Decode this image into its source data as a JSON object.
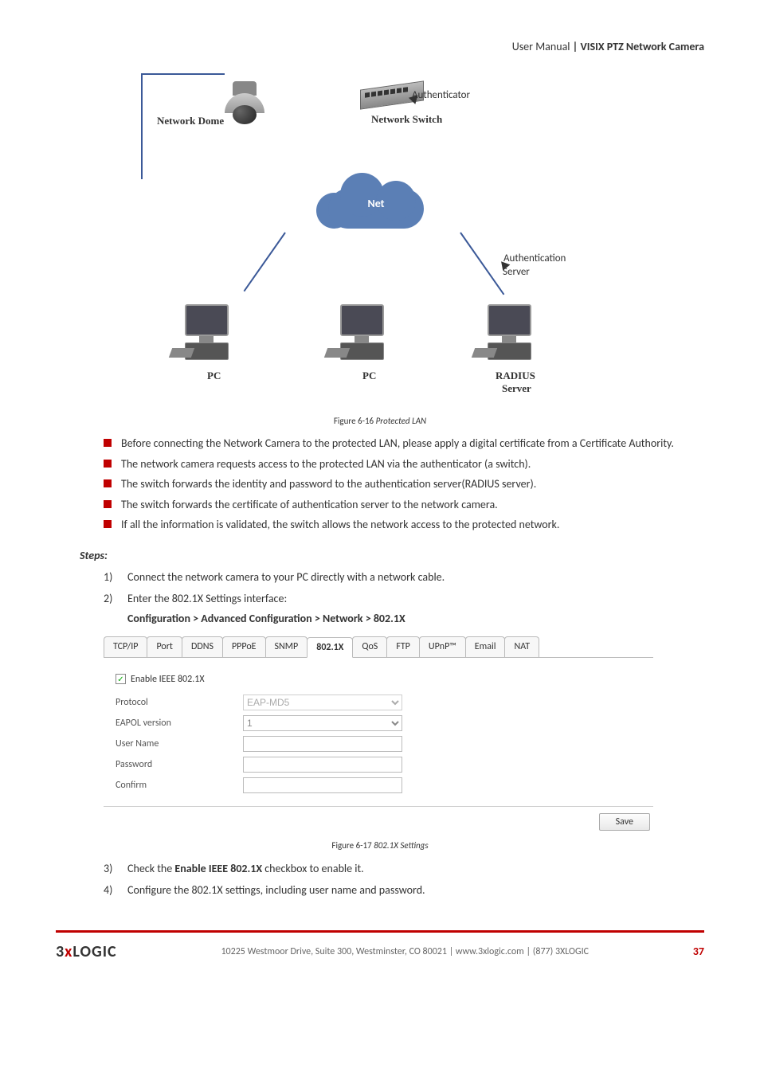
{
  "header": {
    "prefix": "User Manual ",
    "bold": "| VISIX PTZ Network Camera"
  },
  "diagram": {
    "dome_label": "Network Dome",
    "authenticator_label": "Authenticator",
    "switch_label": "Network Switch",
    "net_label": "Net",
    "auth_server_label1": "Authentication",
    "auth_server_label2": "Server",
    "pc1_label": "PC",
    "pc2_label": "PC",
    "radius_label1": "RADIUS",
    "radius_label2": "Server",
    "colors": {
      "arrow": "#3b5998",
      "cloud": "#5b7fb5",
      "bullet": "#c00000"
    }
  },
  "fig1": {
    "prefix": "Figure 6-16 ",
    "italic": "Protected LAN"
  },
  "bullets": [
    "Before connecting the Network Camera to the protected LAN, please apply a digital certificate from a Certificate Authority.",
    "The network camera requests access to the protected LAN via the authenticator (a switch).",
    "The switch forwards the identity and password to the authentication server(RADIUS server).",
    "The switch forwards the certificate of authentication server to the network camera.",
    "If all the information is validated, the switch allows the network access to the protected network."
  ],
  "steps_heading": "Steps:",
  "steps": [
    {
      "n": "1)",
      "text": "Connect the network camera to your PC directly with a network cable."
    },
    {
      "n": "2)",
      "text": "Enter the 802.1X Settings interface:",
      "path": "Configuration > Advanced Configuration > Network > 802.1X"
    }
  ],
  "tabs": [
    "TCP/IP",
    "Port",
    "DDNS",
    "PPPoE",
    "SNMP",
    "802.1X",
    "QoS",
    "FTP",
    "UPnP™",
    "Email",
    "NAT"
  ],
  "active_tab": "802.1X",
  "form": {
    "enable_label": "Enable IEEE 802.1X",
    "enable_checked": true,
    "rows": [
      {
        "label": "Protocol",
        "type": "select",
        "value": "EAP-MD5"
      },
      {
        "label": "EAPOL version",
        "type": "select",
        "value": "1"
      },
      {
        "label": "User Name",
        "type": "text",
        "value": ""
      },
      {
        "label": "Password",
        "type": "password",
        "value": ""
      },
      {
        "label": "Confirm",
        "type": "password",
        "value": ""
      }
    ],
    "save_label": "Save"
  },
  "fig2": {
    "prefix": "Figure 6-17 ",
    "italic": "802.1X Settings"
  },
  "steps2": [
    {
      "n": "3)",
      "pre": "Check the ",
      "bold": "Enable IEEE 802.1X",
      "post": " checkbox to enable it."
    },
    {
      "n": "4)",
      "text": "Configure the 802.1X settings, including user name and password."
    }
  ],
  "footer": {
    "logo_pre": "3",
    "logo_x": "x",
    "logo_post": "LOGIC",
    "text": "10225 Westmoor Drive, Suite 300, Westminster, CO 80021 | www.3xlogic.com | (877) 3XLOGIC",
    "page": "37"
  }
}
